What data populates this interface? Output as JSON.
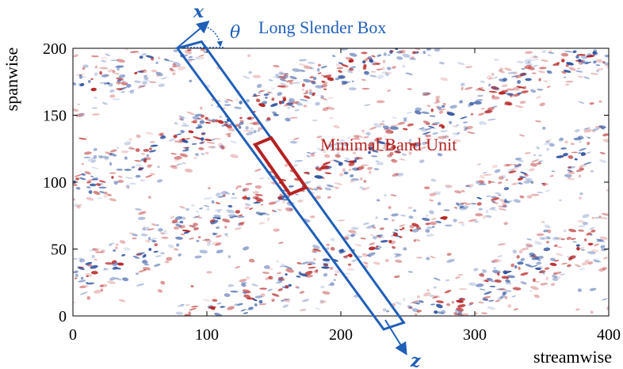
{
  "figure": {
    "xlabel": "streamwise",
    "ylabel": "spanwise",
    "xlim": [
      0,
      400
    ],
    "ylim": [
      0,
      200
    ],
    "xticks": [
      0,
      100,
      200,
      300,
      400
    ],
    "yticks": [
      0,
      50,
      100,
      150,
      200
    ],
    "field_colors": {
      "positive": "#b52222",
      "negative": "#2a4f9e",
      "background": "#ffffff"
    }
  },
  "annotations": {
    "long_box_label": "Long Slender Box",
    "band_unit_label": "Minimal Band Unit",
    "x_axis_symbol": "x",
    "z_axis_symbol": "z",
    "angle_symbol": "θ",
    "long_box_color": "#1f5fb8",
    "band_unit_color": "#b52222"
  },
  "long_box": {
    "corners_data": [
      [
        78,
        200
      ],
      [
        96,
        205
      ],
      [
        247,
        -5
      ],
      [
        232,
        -10
      ]
    ]
  },
  "band_unit": {
    "corners_data": [
      [
        136,
        128
      ],
      [
        148,
        133
      ],
      [
        174,
        96
      ],
      [
        162,
        91
      ]
    ]
  }
}
